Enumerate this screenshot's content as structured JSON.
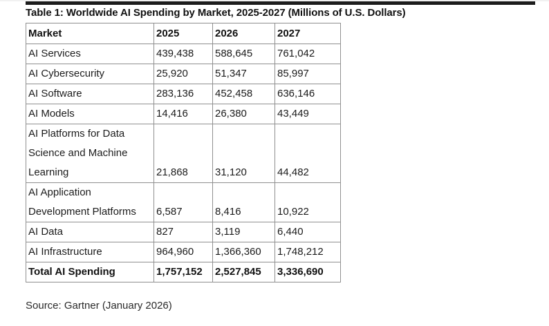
{
  "page": {
    "title": "Table 1: Worldwide AI Spending by Market, 2025-2027 (Millions of U.S. Dollars)",
    "source_note": "Source: Gartner (January 2026)"
  },
  "colors": {
    "top_rule": "#1c1c1c",
    "table_border": "#8f8f8f",
    "text": "#1b1b1b",
    "background": "#ffffff"
  },
  "table": {
    "headers": [
      "Market",
      "2025",
      "2026",
      "2027"
    ],
    "rows": [
      {
        "market": "AI Services",
        "y2025": "439,438",
        "y2026": "588,645",
        "y2027": "761,042"
      },
      {
        "market": "AI Cybersecurity",
        "y2025": "25,920",
        "y2026": "51,347",
        "y2027": "85,997"
      },
      {
        "market": "AI Software",
        "y2025": "283,136",
        "y2026": "452,458",
        "y2027": "636,146"
      },
      {
        "market": "AI Models",
        "y2025": "14,416",
        "y2026": "26,380",
        "y2027": "43,449"
      },
      {
        "market": [
          "AI Platforms for Data",
          "Science and Machine",
          "Learning"
        ],
        "y2025": "21,868",
        "y2026": "31,120",
        "y2027": "44,482"
      },
      {
        "market": [
          "AI Application",
          "Development Platforms"
        ],
        "y2025": "6,587",
        "y2026": "8,416",
        "y2027": "10,922"
      },
      {
        "market": "AI Data",
        "y2025": "827",
        "y2026": "3,119",
        "y2027": "6,440"
      },
      {
        "market": "AI Infrastructure",
        "y2025": "964,960",
        "y2026": "1,366,360",
        "y2027": "1,748,212"
      }
    ],
    "total_row": {
      "market": "Total AI Spending",
      "y2025": "1,757,152",
      "y2026": "2,527,845",
      "y2027": "3,336,690"
    }
  },
  "chart_data": {
    "type": "table",
    "title": "Worldwide AI Spending by Market, 2025-2027",
    "unit": "Millions of U.S. Dollars",
    "categories": [
      "AI Services",
      "AI Cybersecurity",
      "AI Software",
      "AI Models",
      "AI Platforms for Data Science and Machine Learning",
      "AI Application Development Platforms",
      "AI Data",
      "AI Infrastructure",
      "Total AI Spending"
    ],
    "series": [
      {
        "name": "2025",
        "values": [
          439438,
          25920,
          283136,
          14416,
          21868,
          6587,
          827,
          964960,
          1757152
        ]
      },
      {
        "name": "2026",
        "values": [
          588645,
          51347,
          452458,
          26380,
          31120,
          8416,
          3119,
          1366360,
          2527845
        ]
      },
      {
        "name": "2027",
        "values": [
          761042,
          85997,
          636146,
          43449,
          44482,
          10922,
          6440,
          1748212,
          3336690
        ]
      }
    ],
    "source": "Gartner (January 2026)"
  }
}
